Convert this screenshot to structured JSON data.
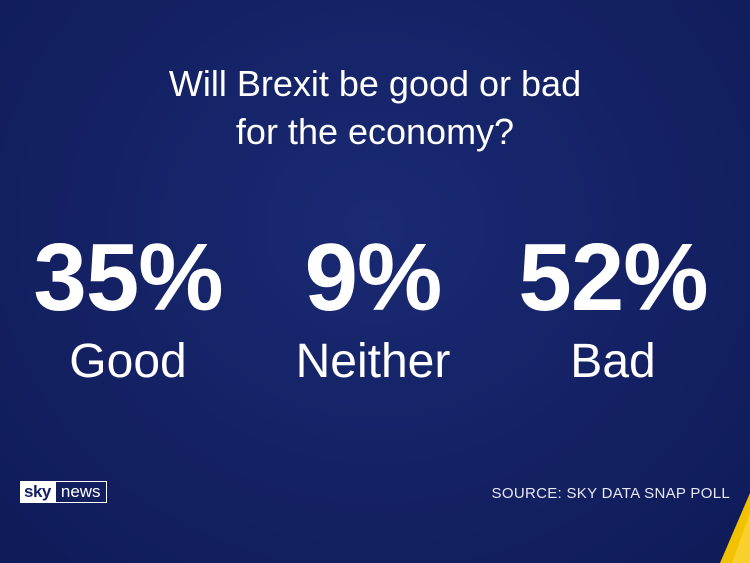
{
  "question": {
    "line1": "Will Brexit be good or bad",
    "line2": "for the economy?"
  },
  "stats": [
    {
      "value": "35%",
      "label": "Good"
    },
    {
      "value": "9%",
      "label": "Neither"
    },
    {
      "value": "52%",
      "label": "Bad"
    }
  ],
  "logo": {
    "sky": "sky",
    "news": "news"
  },
  "source": "SOURCE: SKY DATA SNAP POLL",
  "colors": {
    "background": "#142164",
    "text": "#ffffff",
    "accent": "#f2c200"
  }
}
